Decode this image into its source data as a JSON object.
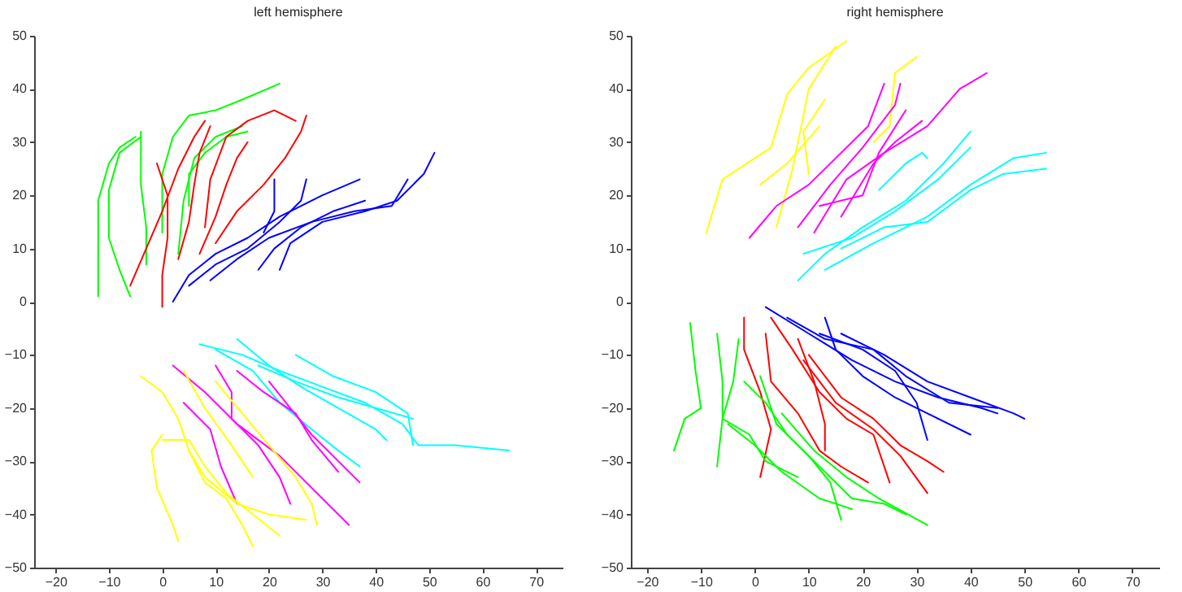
{
  "chart_data": [
    {
      "type": "line",
      "title": "left hemisphere",
      "xlim": [
        -24,
        75
      ],
      "ylim": [
        -50,
        50
      ],
      "xticks": [
        -20,
        -10,
        0,
        10,
        20,
        30,
        40,
        50,
        60,
        70
      ],
      "yticks": [
        -50,
        -40,
        -30,
        -20,
        -10,
        0,
        10,
        20,
        30,
        40,
        50
      ],
      "grid": false,
      "line_style": "solid",
      "series": [
        {
          "color": "#00ff00",
          "x": [
            -12,
            -12,
            -12,
            -10,
            -8,
            -5
          ],
          "values": [
            1,
            10,
            19,
            26,
            29,
            31
          ]
        },
        {
          "color": "#00ff00",
          "x": [
            -6,
            -8,
            -10,
            -10,
            -8,
            -4
          ],
          "values": [
            1,
            6,
            12,
            21,
            28,
            31
          ]
        },
        {
          "color": "#00ff00",
          "x": [
            -3,
            -3,
            -4,
            -4,
            -4
          ],
          "values": [
            7,
            14,
            22,
            28,
            32
          ]
        },
        {
          "color": "#00ff00",
          "x": [
            0,
            0,
            2,
            5,
            10,
            15,
            22
          ],
          "values": [
            13,
            24,
            31,
            35,
            36,
            38,
            41
          ]
        },
        {
          "color": "#00ff00",
          "x": [
            3,
            4,
            6,
            10,
            15
          ],
          "values": [
            9,
            19,
            27,
            31,
            33
          ]
        },
        {
          "color": "#00ff00",
          "x": [
            5,
            5,
            8,
            12,
            16
          ],
          "values": [
            18,
            24,
            28,
            31,
            32
          ]
        },
        {
          "color": "#ff0000",
          "x": [
            -6,
            -3,
            0,
            3,
            6,
            8
          ],
          "values": [
            3,
            10,
            17,
            25,
            31,
            34
          ]
        },
        {
          "color": "#ff0000",
          "x": [
            0,
            0,
            1,
            1,
            -1
          ],
          "values": [
            -1,
            5,
            12,
            20,
            26
          ]
        },
        {
          "color": "#ff0000",
          "x": [
            3,
            5,
            6,
            7,
            9
          ],
          "values": [
            8,
            15,
            22,
            28,
            33
          ]
        },
        {
          "color": "#ff0000",
          "x": [
            7,
            10,
            12,
            14,
            16
          ],
          "values": [
            9,
            16,
            22,
            27,
            30
          ]
        },
        {
          "color": "#ff0000",
          "x": [
            10,
            14,
            19,
            23,
            26,
            27
          ],
          "values": [
            11,
            17,
            22,
            27,
            32,
            35
          ]
        },
        {
          "color": "#ff0000",
          "x": [
            8,
            9,
            12,
            16,
            21,
            25
          ],
          "values": [
            14,
            23,
            31,
            34,
            36,
            34
          ]
        },
        {
          "color": "#0000ff",
          "x": [
            2,
            5,
            10,
            16,
            22,
            30,
            37
          ],
          "values": [
            0,
            5,
            9,
            12,
            16,
            20,
            23
          ]
        },
        {
          "color": "#0000ff",
          "x": [
            5,
            10,
            16,
            22,
            26,
            27
          ],
          "values": [
            3,
            7,
            10,
            15,
            19,
            23
          ]
        },
        {
          "color": "#0000ff",
          "x": [
            9,
            14,
            20,
            28,
            36,
            43,
            46
          ],
          "values": [
            4,
            8,
            12,
            15,
            17,
            18,
            23
          ]
        },
        {
          "color": "#0000ff",
          "x": [
            22,
            24,
            30,
            38,
            44,
            49,
            51
          ],
          "values": [
            6,
            11,
            15,
            17,
            19,
            24,
            28
          ]
        },
        {
          "color": "#0000ff",
          "x": [
            18,
            21,
            26,
            32,
            38
          ],
          "values": [
            6,
            10,
            14,
            17,
            19
          ]
        },
        {
          "color": "#0000ff",
          "x": [
            19,
            21,
            21
          ],
          "values": [
            13,
            17,
            23
          ]
        },
        {
          "color": "#00ffff",
          "x": [
            7,
            15,
            22,
            30,
            38,
            45,
            48,
            55,
            65
          ],
          "values": [
            -8,
            -10,
            -13,
            -16,
            -19,
            -23,
            -27,
            -27,
            -28
          ]
        },
        {
          "color": "#00ffff",
          "x": [
            14,
            20,
            26,
            33,
            40,
            42
          ],
          "values": [
            -7,
            -12,
            -16,
            -20,
            -24,
            -26
          ]
        },
        {
          "color": "#00ffff",
          "x": [
            10,
            17,
            22,
            28,
            33,
            37
          ],
          "values": [
            -9,
            -13,
            -19,
            -24,
            -28,
            -31
          ]
        },
        {
          "color": "#00ffff",
          "x": [
            25,
            32,
            40,
            46,
            47
          ],
          "values": [
            -10,
            -14,
            -17,
            -21,
            -27
          ]
        },
        {
          "color": "#00ffff",
          "x": [
            18,
            25,
            33,
            40,
            47
          ],
          "values": [
            -12,
            -15,
            -18,
            -20,
            -22
          ]
        },
        {
          "color": "#ff00ff",
          "x": [
            2,
            8,
            14,
            22,
            29,
            35
          ],
          "values": [
            -12,
            -17,
            -23,
            -29,
            -36,
            -42
          ]
        },
        {
          "color": "#ff00ff",
          "x": [
            4,
            9,
            11,
            14
          ],
          "values": [
            -19,
            -24,
            -31,
            -38
          ]
        },
        {
          "color": "#ff00ff",
          "x": [
            10,
            13,
            13,
            18,
            22,
            24
          ],
          "values": [
            -12,
            -17,
            -22,
            -27,
            -33,
            -38
          ]
        },
        {
          "color": "#ff00ff",
          "x": [
            20,
            24,
            28,
            32,
            37
          ],
          "values": [
            -15,
            -20,
            -25,
            -29,
            -34
          ]
        },
        {
          "color": "#ff00ff",
          "x": [
            14,
            19,
            25,
            28,
            33
          ],
          "values": [
            -13,
            -17,
            -21,
            -26,
            -32
          ]
        },
        {
          "color": "#ffff00",
          "x": [
            -4,
            0,
            3,
            5,
            8,
            14,
            20,
            27
          ],
          "values": [
            -14,
            -17,
            -22,
            -28,
            -33,
            -38,
            -40,
            -41
          ]
        },
        {
          "color": "#ffff00",
          "x": [
            0,
            -2,
            -1,
            2,
            3
          ],
          "values": [
            -25,
            -28,
            -35,
            -42,
            -45
          ]
        },
        {
          "color": "#ffff00",
          "x": [
            5,
            8,
            12,
            15,
            17
          ],
          "values": [
            -28,
            -34,
            -37,
            -42,
            -46
          ]
        },
        {
          "color": "#ffff00",
          "x": [
            10,
            15,
            20,
            25,
            28,
            29
          ],
          "values": [
            -15,
            -21,
            -27,
            -33,
            -38,
            -42
          ]
        },
        {
          "color": "#ffff00",
          "x": [
            4,
            8,
            13,
            17
          ],
          "values": [
            -13,
            -20,
            -27,
            -33
          ]
        },
        {
          "color": "#ffff00",
          "x": [
            0,
            5,
            8,
            12,
            22
          ],
          "values": [
            -26,
            -26,
            -31,
            -36,
            -44
          ]
        }
      ]
    },
    {
      "type": "line",
      "title": "right hemisphere",
      "xlim": [
        -23,
        75
      ],
      "ylim": [
        -50,
        50
      ],
      "xticks": [
        -20,
        -10,
        0,
        10,
        20,
        30,
        40,
        50,
        60,
        70
      ],
      "yticks": [
        -50,
        -40,
        -30,
        -20,
        -10,
        0,
        10,
        20,
        30,
        40,
        50
      ],
      "grid": false,
      "line_style": "solid",
      "series": [
        {
          "color": "#ffff00",
          "x": [
            -9,
            -6,
            3,
            6,
            10,
            17
          ],
          "values": [
            13,
            23,
            29,
            39,
            44,
            49
          ]
        },
        {
          "color": "#ffff00",
          "x": [
            4,
            7,
            9,
            10,
            15
          ],
          "values": [
            14,
            25,
            35,
            40,
            48
          ]
        },
        {
          "color": "#ffff00",
          "x": [
            1,
            6,
            12
          ],
          "values": [
            22,
            26,
            33
          ]
        },
        {
          "color": "#ffff00",
          "x": [
            22,
            25,
            26,
            30
          ],
          "values": [
            30,
            33,
            43,
            46
          ]
        },
        {
          "color": "#ffff00",
          "x": [
            10,
            9,
            13
          ],
          "values": [
            24,
            32,
            38
          ]
        },
        {
          "color": "#ff00ff",
          "x": [
            -1,
            4,
            10,
            15,
            21,
            24
          ],
          "values": [
            12,
            18,
            22,
            27,
            33,
            41
          ]
        },
        {
          "color": "#ff00ff",
          "x": [
            8,
            14,
            20,
            26,
            27
          ],
          "values": [
            14,
            22,
            29,
            37,
            41
          ]
        },
        {
          "color": "#ff00ff",
          "x": [
            11,
            17,
            24,
            32,
            38,
            43
          ],
          "values": [
            13,
            23,
            28,
            33,
            40,
            43
          ]
        },
        {
          "color": "#ff00ff",
          "x": [
            12,
            20,
            23,
            28
          ],
          "values": [
            18,
            20,
            28,
            36
          ]
        },
        {
          "color": "#ff00ff",
          "x": [
            16,
            22,
            26,
            31
          ],
          "values": [
            16,
            26,
            30,
            34
          ]
        },
        {
          "color": "#00ffff",
          "x": [
            8,
            13,
            20,
            28,
            35,
            40
          ],
          "values": [
            4,
            9,
            14,
            19,
            26,
            32
          ]
        },
        {
          "color": "#00ffff",
          "x": [
            9,
            18,
            26,
            34,
            40
          ],
          "values": [
            9,
            12,
            17,
            23,
            29
          ]
        },
        {
          "color": "#00ffff",
          "x": [
            13,
            22,
            32,
            40,
            48,
            54
          ],
          "values": [
            6,
            11,
            16,
            22,
            27,
            28
          ]
        },
        {
          "color": "#00ffff",
          "x": [
            16,
            24,
            32,
            36,
            40,
            46,
            54
          ],
          "values": [
            10,
            14,
            15,
            18,
            21,
            24,
            25
          ]
        },
        {
          "color": "#00ffff",
          "x": [
            23,
            28,
            31,
            32
          ],
          "values": [
            21,
            26,
            28,
            27
          ]
        },
        {
          "color": "#0000ff",
          "x": [
            2,
            10,
            18,
            26,
            34,
            42,
            45
          ],
          "values": [
            -1,
            -6,
            -11,
            -15,
            -18,
            -20,
            -21
          ]
        },
        {
          "color": "#0000ff",
          "x": [
            6,
            13,
            22,
            28,
            36,
            45
          ],
          "values": [
            -3,
            -7,
            -9,
            -14,
            -19,
            -20
          ]
        },
        {
          "color": "#0000ff",
          "x": [
            13,
            15,
            20,
            26,
            32,
            40
          ],
          "values": [
            -3,
            -9,
            -14,
            -18,
            -21,
            -25
          ]
        },
        {
          "color": "#0000ff",
          "x": [
            12,
            20,
            26,
            30,
            32
          ],
          "values": [
            -6,
            -9,
            -13,
            -19,
            -26
          ]
        },
        {
          "color": "#0000ff",
          "x": [
            16,
            24,
            32,
            40,
            48,
            50
          ],
          "values": [
            -6,
            -10,
            -15,
            -18,
            -21,
            -22
          ]
        },
        {
          "color": "#ff0000",
          "x": [
            -2,
            -2,
            1,
            3,
            1
          ],
          "values": [
            -3,
            -9,
            -17,
            -24,
            -33
          ]
        },
        {
          "color": "#ff0000",
          "x": [
            2,
            3,
            8,
            12,
            16,
            21
          ],
          "values": [
            -6,
            -15,
            -21,
            -28,
            -31,
            -34
          ]
        },
        {
          "color": "#ff0000",
          "x": [
            3,
            7,
            12,
            17,
            22,
            25
          ],
          "values": [
            -3,
            -9,
            -17,
            -22,
            -25,
            -34
          ]
        },
        {
          "color": "#ff0000",
          "x": [
            8,
            11,
            13,
            13
          ],
          "values": [
            -7,
            -15,
            -23,
            -28
          ]
        },
        {
          "color": "#ff0000",
          "x": [
            10,
            16,
            22,
            27,
            32,
            35
          ],
          "values": [
            -10,
            -18,
            -22,
            -27,
            -30,
            -32
          ]
        },
        {
          "color": "#ff0000",
          "x": [
            9,
            15,
            22,
            27,
            32
          ],
          "values": [
            -11,
            -19,
            -24,
            -29,
            -36
          ]
        },
        {
          "color": "#00ff00",
          "x": [
            -12,
            -11,
            -10,
            -13,
            -15
          ],
          "values": [
            -4,
            -13,
            -20,
            -22,
            -28
          ]
        },
        {
          "color": "#00ff00",
          "x": [
            -7,
            -6,
            -6,
            -7
          ],
          "values": [
            -6,
            -15,
            -22,
            -31
          ]
        },
        {
          "color": "#00ff00",
          "x": [
            -3,
            -4,
            -6,
            -1,
            2,
            8
          ],
          "values": [
            -7,
            -15,
            -22,
            -25,
            -30,
            -33
          ]
        },
        {
          "color": "#00ff00",
          "x": [
            -2,
            2,
            6,
            12,
            18,
            24,
            28
          ],
          "values": [
            -15,
            -19,
            -25,
            -31,
            -37,
            -38,
            -40
          ]
        },
        {
          "color": "#00ff00",
          "x": [
            1,
            4,
            10,
            14,
            16
          ],
          "values": [
            -14,
            -23,
            -29,
            -34,
            -41
          ]
        },
        {
          "color": "#00ff00",
          "x": [
            -5,
            0,
            5,
            12,
            18
          ],
          "values": [
            -23,
            -27,
            -32,
            -37,
            -39
          ]
        },
        {
          "color": "#00ff00",
          "x": [
            5,
            11,
            17,
            23,
            32
          ],
          "values": [
            -21,
            -28,
            -33,
            -37,
            -42
          ]
        }
      ]
    }
  ]
}
